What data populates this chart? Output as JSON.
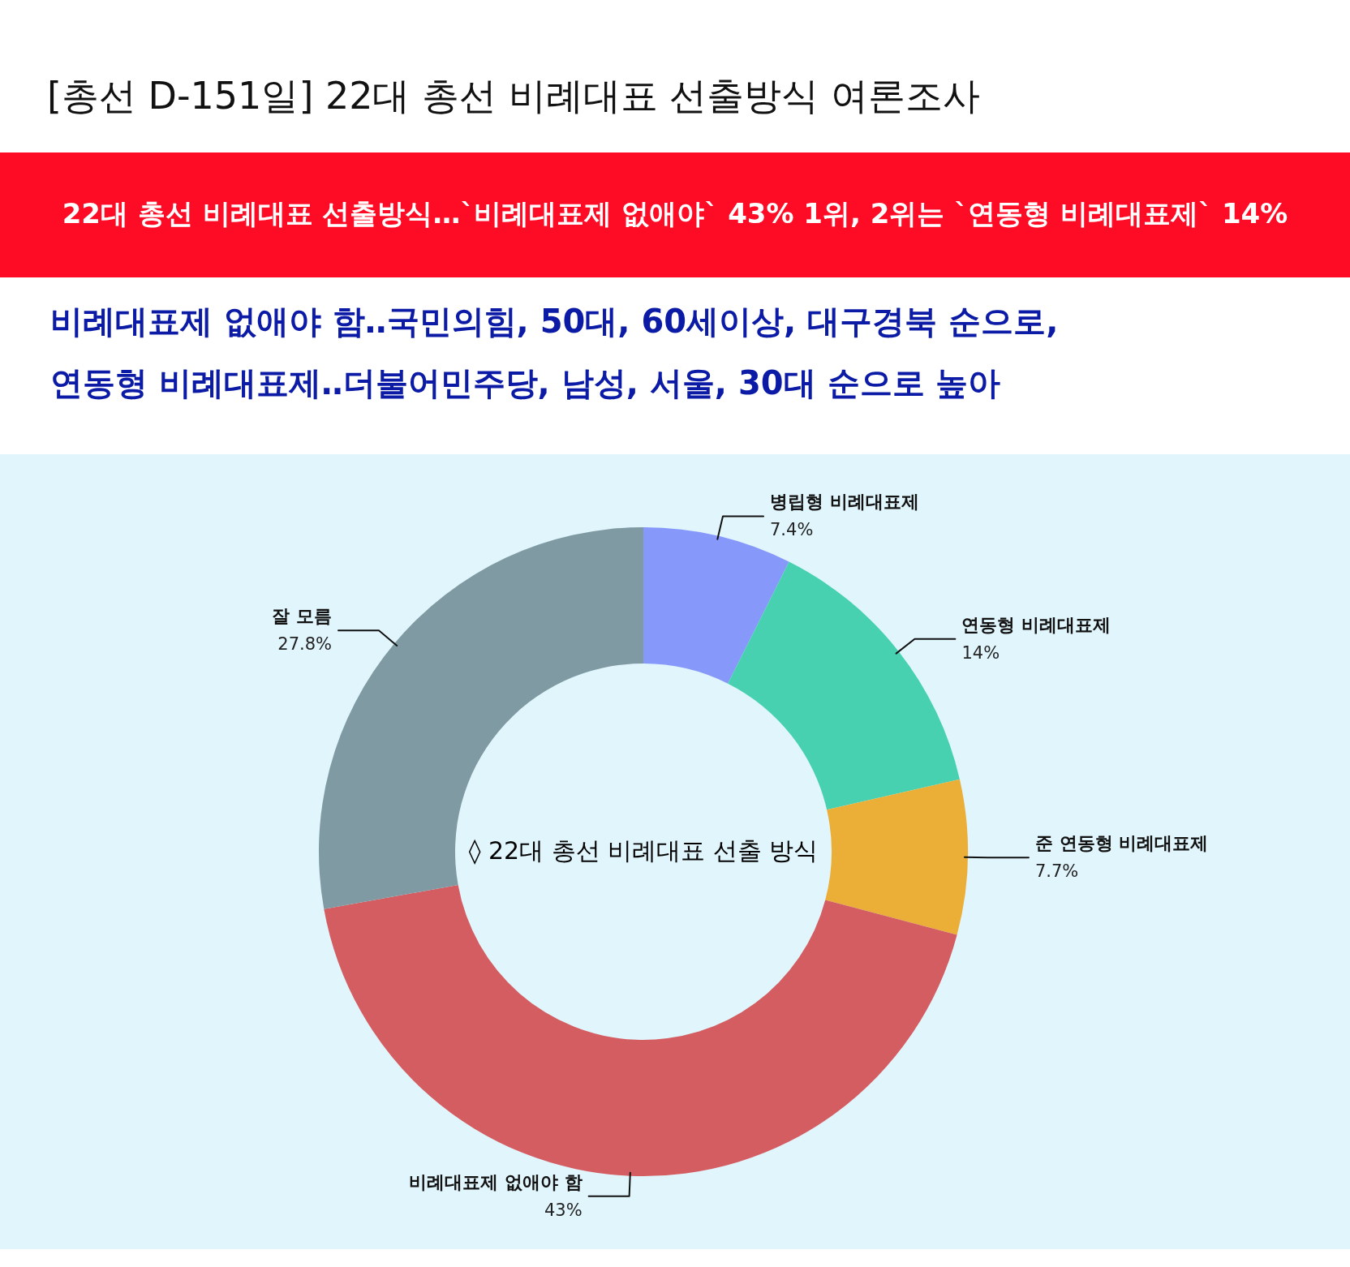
{
  "chart_data": {
    "type": "donut",
    "title": "[총선 D-151일] 22대 총선 비례대표 선출방식 여론조사",
    "subtitle": "22대 총선 비례대표 선출방식…`비례대표제 없애야` 43% 1위, 2위는 `연동형 비례대표제` 14%",
    "annotations": [
      "비례대표제 없애야 함‥국민의힘, 50대, 60세이상, 대구경북 순으로,",
      "연동형 비례대표제‥더불어민주당, 남성, 서울, 30대 순으로 높아",
      "◊ 22대 총선 비례대표 선출 방식"
    ],
    "categories": [
      "병립형 비례대표제",
      "연동형 비례대표제",
      "준 연동형 비례대표제",
      "비례대표제 없애야 함",
      "잘 모름"
    ],
    "values": [
      7.4,
      14,
      7.7,
      43,
      27.8
    ],
    "colors": [
      "#8798fb",
      "#48d1b1",
      "#ebae37",
      "#d45d61",
      "#7f9aa3"
    ],
    "value_labels": [
      "7.4%",
      "14%",
      "7.7%",
      "43%",
      "27.8%"
    ]
  }
}
